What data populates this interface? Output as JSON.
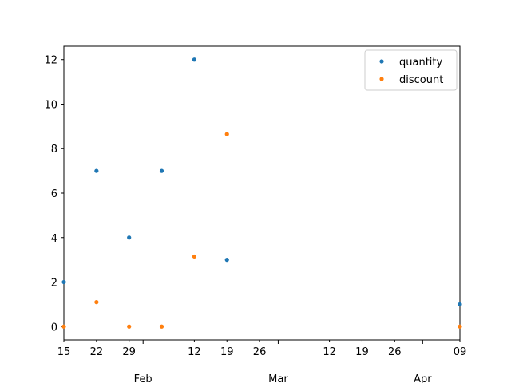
{
  "chart_data": {
    "type": "scatter",
    "x": [
      "2024-01-15",
      "2024-01-22",
      "2024-01-29",
      "2024-02-05",
      "2024-02-12",
      "2024-02-19",
      "2024-04-09"
    ],
    "series": [
      {
        "name": "quantity",
        "color": "#1f77b4",
        "values": [
          2,
          7,
          4,
          7,
          12,
          3,
          1
        ]
      },
      {
        "name": "discount",
        "color": "#ff7f0e",
        "values": [
          0,
          1.1,
          0,
          0,
          3.15,
          8.65,
          0
        ]
      }
    ],
    "xlim": [
      "2024-01-15",
      "2024-04-09"
    ],
    "ylim": [
      -0.6,
      12.6
    ],
    "y_ticks": [
      0,
      2,
      4,
      6,
      8,
      10,
      12
    ],
    "x_minor_ticks": [
      {
        "date": "2024-01-15",
        "label": "15"
      },
      {
        "date": "2024-01-22",
        "label": "22"
      },
      {
        "date": "2024-01-29",
        "label": "29"
      },
      {
        "date": "2024-02-12",
        "label": "12"
      },
      {
        "date": "2024-02-19",
        "label": "19"
      },
      {
        "date": "2024-02-26",
        "label": "26"
      },
      {
        "date": "2024-03-12",
        "label": "12"
      },
      {
        "date": "2024-03-19",
        "label": "19"
      },
      {
        "date": "2024-03-26",
        "label": "26"
      },
      {
        "date": "2024-04-09",
        "label": "09"
      }
    ],
    "x_major_ticks": [
      {
        "date": "2024-02-01",
        "label": "Feb"
      },
      {
        "date": "2024-03-01",
        "label": "Mar"
      },
      {
        "date": "2024-04-01",
        "label": "Apr"
      }
    ],
    "legend": "top-right",
    "grid": false
  }
}
